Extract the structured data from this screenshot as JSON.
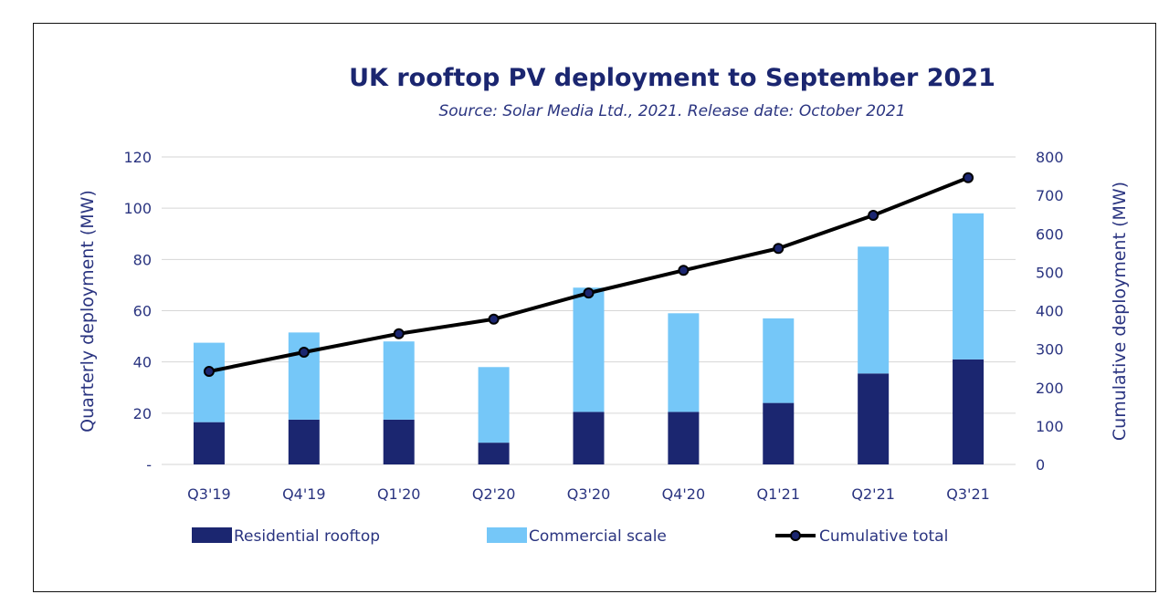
{
  "chart_data": {
    "type": "bar",
    "stacked": true,
    "title": "UK rooftop PV deployment to September 2021",
    "subtitle": "Source: Solar Media Ltd., 2021. Release date: October 2021",
    "categories": [
      "Q3'19",
      "Q4'19",
      "Q1'20",
      "Q2'20",
      "Q3'20",
      "Q4'20",
      "Q1'21",
      "Q2'21",
      "Q3'21"
    ],
    "series": [
      {
        "name": "Residential rooftop",
        "type": "bar",
        "axis": "left",
        "color": "#1b2670",
        "values": [
          16.5,
          17.5,
          17.5,
          8.5,
          20.5,
          20.5,
          24,
          35.5,
          41
        ]
      },
      {
        "name": "Commercial scale",
        "type": "bar",
        "axis": "left",
        "color": "#75c7f8",
        "values": [
          31,
          34,
          30.5,
          29.5,
          48.5,
          38.5,
          33,
          49.5,
          57
        ]
      },
      {
        "name": "Cumulative total",
        "type": "line",
        "axis": "right",
        "color": "#000000",
        "values": [
          242,
          292,
          340,
          378,
          446,
          505,
          562,
          648,
          746
        ]
      }
    ],
    "y_left": {
      "label": "Quarterly deployment (MW)",
      "lim": [
        0,
        120
      ],
      "ticks": [
        0,
        20,
        40,
        60,
        80,
        100,
        120
      ],
      "tick_labels": [
        "-",
        "20",
        "40",
        "60",
        "80",
        "100",
        "120"
      ]
    },
    "y_right": {
      "label": "Cumulative deployment (MW)",
      "lim": [
        0,
        800
      ],
      "ticks": [
        0,
        100,
        200,
        300,
        400,
        500,
        600,
        700,
        800
      ],
      "tick_labels": [
        "0",
        "100",
        "200",
        "300",
        "400",
        "500",
        "600",
        "700",
        "800"
      ]
    },
    "grid": true,
    "legend_position": "bottom"
  }
}
